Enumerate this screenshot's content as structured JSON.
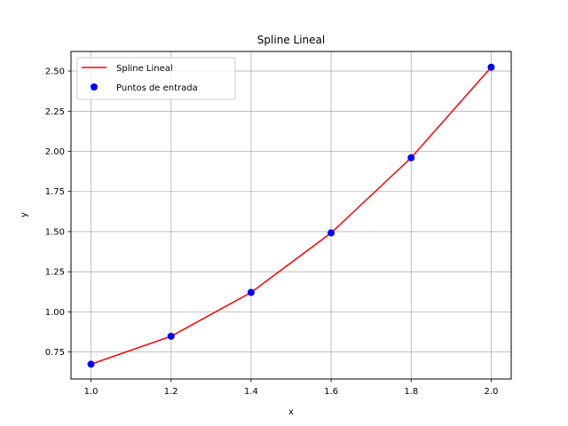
{
  "chart_data": {
    "type": "line",
    "title": "Spline Lineal",
    "xlabel": "x",
    "ylabel": "y",
    "xlim": [
      0.95,
      2.05
    ],
    "ylim": [
      0.582,
      2.622
    ],
    "xticks": [
      1.0,
      1.2,
      1.4,
      1.6,
      1.8,
      2.0
    ],
    "xtick_labels": [
      "1.0",
      "1.2",
      "1.4",
      "1.6",
      "1.8",
      "2.0"
    ],
    "yticks": [
      0.75,
      1.0,
      1.25,
      1.5,
      1.75,
      2.0,
      2.25,
      2.5
    ],
    "ytick_labels": [
      "0.75",
      "1.00",
      "1.25",
      "1.50",
      "1.75",
      "2.00",
      "2.25",
      "2.50"
    ],
    "grid": true,
    "legend_position": "top-left",
    "series": [
      {
        "name": "Spline Lineal",
        "kind": "line",
        "color": "#ff0000",
        "x": [
          1.0,
          1.2,
          1.4,
          1.6,
          1.8,
          2.0
        ],
        "y": [
          0.674,
          0.848,
          1.121,
          1.492,
          1.96,
          2.524
        ]
      },
      {
        "name": "Puntos de entrada",
        "kind": "scatter",
        "color": "#0000ff",
        "x": [
          1.0,
          1.2,
          1.4,
          1.6,
          1.8,
          2.0
        ],
        "y": [
          0.674,
          0.848,
          1.121,
          1.492,
          1.96,
          2.524
        ]
      }
    ]
  }
}
